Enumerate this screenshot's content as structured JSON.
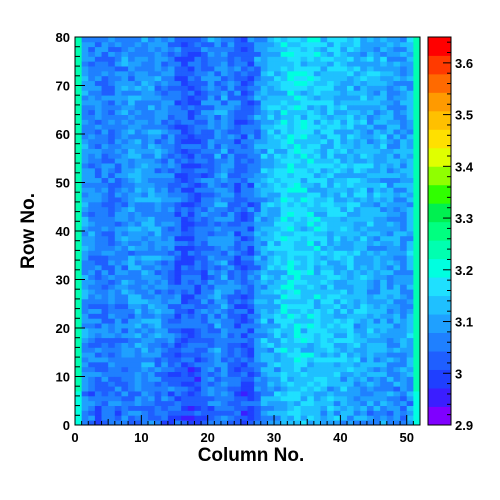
{
  "chart_data": {
    "type": "heatmap",
    "title": "",
    "xlabel": "Column No.",
    "ylabel": "Row No.",
    "xlim": [
      0,
      52
    ],
    "ylim": [
      0,
      80
    ],
    "x_ticks": [
      "0",
      "10",
      "20",
      "30",
      "40",
      "50"
    ],
    "y_ticks": [
      "0",
      "10",
      "20",
      "30",
      "40",
      "50",
      "60",
      "70",
      "80"
    ],
    "n_columns": 52,
    "n_rows": 80,
    "zlim": [
      2.9,
      3.65
    ],
    "z_ticks": [
      "2.9",
      "3",
      "3.1",
      "3.2",
      "3.3",
      "3.4",
      "3.5",
      "3.6"
    ],
    "colormap": [
      "#7f00ff",
      "#3b1eff",
      "#1f3fff",
      "#1f5fff",
      "#1f80ff",
      "#1fa0ff",
      "#1fc0ff",
      "#1fe0ff",
      "#00ffe0",
      "#00ffb0",
      "#00ff80",
      "#00f050",
      "#30ff00",
      "#90ff00",
      "#e0ff00",
      "#ffe000",
      "#ffc000",
      "#ff9a00",
      "#ff6a00",
      "#ff3a00",
      "#ff0000"
    ],
    "column_profile": [
      3.24,
      3.09,
      3.07,
      3.06,
      3.06,
      3.06,
      3.07,
      3.08,
      3.08,
      3.09,
      3.09,
      3.09,
      3.08,
      3.07,
      3.06,
      3.04,
      3.03,
      3.02,
      3.03,
      3.05,
      3.07,
      3.08,
      3.08,
      3.06,
      3.04,
      3.03,
      3.04,
      3.08,
      3.11,
      3.12,
      3.13,
      3.15,
      3.16,
      3.16,
      3.15,
      3.15,
      3.15,
      3.14,
      3.14,
      3.14,
      3.13,
      3.13,
      3.12,
      3.12,
      3.11,
      3.11,
      3.11,
      3.1,
      3.1,
      3.09,
      3.11,
      3.24
    ],
    "row_profile": {
      "low_rows": 18,
      "low_offset": -0.03
    }
  }
}
